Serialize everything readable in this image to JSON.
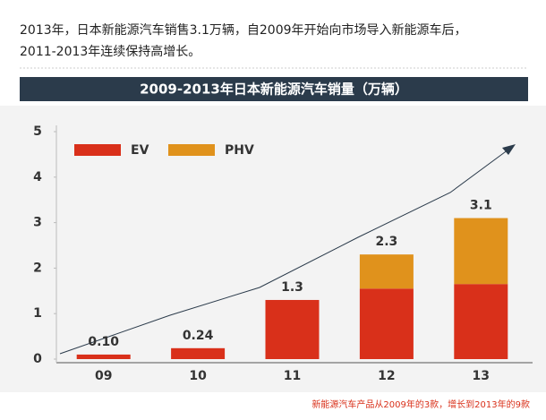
{
  "intro": [
    "2013年，日本新能源汽车销售3.1万辆，自2009年开始向市场导入新能源车后，",
    "2011-2013年连续保持高增长。"
  ],
  "chart_data": {
    "type": "bar",
    "stacked": true,
    "title": "2009-2013年日本新能源汽车销量（万辆）",
    "categories": [
      "09",
      "10",
      "11",
      "12",
      "13"
    ],
    "series": [
      {
        "name": "EV",
        "color": "#d9301a",
        "values": [
          0.1,
          0.24,
          1.3,
          1.55,
          1.65
        ]
      },
      {
        "name": "PHV",
        "color": "#e0921c",
        "values": [
          0,
          0,
          0,
          0.75,
          1.45
        ]
      }
    ],
    "totals": [
      0.1,
      0.24,
      1.3,
      2.3,
      3.1
    ],
    "total_labels": [
      "0.10",
      "0.24",
      "1.3",
      "2.3",
      "3.1"
    ],
    "ylim": [
      0,
      5
    ],
    "yticks": [
      0,
      1,
      2,
      3,
      4,
      5
    ],
    "footnote": "新能源汽车产品从2009年的3款，增长到2013年的9款"
  }
}
